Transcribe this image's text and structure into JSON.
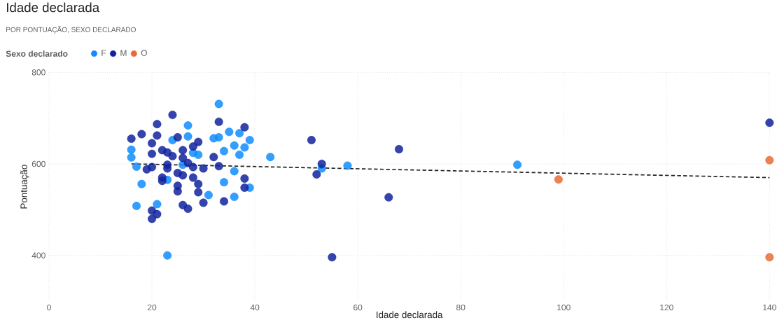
{
  "chart_data": {
    "type": "scatter",
    "title": "Idade declarada",
    "subtitle": "POR PONTUAÇÃO, SEXO DECLARADO",
    "xlabel": "Idade declarada",
    "ylabel": "Pontuação",
    "legend_title": "Sexo declarado",
    "xlim": [
      0,
      140
    ],
    "ylim": [
      300,
      800
    ],
    "xticks": [
      0,
      20,
      40,
      60,
      80,
      100,
      120,
      140
    ],
    "yticks": [
      400,
      600,
      800
    ],
    "grid": true,
    "legend": "top left",
    "marker": "circle",
    "series": [
      {
        "name": "F",
        "color": "#118dff",
        "x": [
          16,
          16,
          17,
          17,
          18,
          21,
          23,
          23,
          24,
          27,
          27,
          28,
          31,
          33,
          33,
          32,
          34,
          34,
          35,
          36,
          36,
          36,
          37,
          37,
          38,
          39,
          39,
          43,
          53,
          58,
          91,
          29,
          26
        ],
        "values": [
          631,
          614,
          594,
          508,
          556,
          512,
          400,
          565,
          652,
          684,
          660,
          624,
          532,
          731,
          658,
          656,
          628,
          560,
          670,
          640,
          584,
          528,
          667,
          620,
          636,
          652,
          548,
          615,
          590,
          596,
          598,
          620,
          598
        ]
      },
      {
        "name": "M",
        "color": "#12239e",
        "x": [
          16,
          18,
          19,
          20,
          20,
          20,
          20,
          20,
          21,
          21,
          21,
          22,
          22,
          22,
          23,
          23,
          23,
          24,
          24,
          25,
          25,
          25,
          25,
          26,
          26,
          26,
          26,
          27,
          27,
          28,
          28,
          28,
          29,
          29,
          29,
          30,
          30,
          32,
          33,
          33,
          34,
          38,
          38,
          38,
          51,
          52,
          53,
          55,
          66,
          68,
          140
        ],
        "values": [
          655,
          665,
          588,
          645,
          622,
          593,
          498,
          480,
          687,
          662,
          490,
          630,
          570,
          563,
          625,
          598,
          590,
          707,
          617,
          658,
          580,
          552,
          540,
          630,
          613,
          575,
          510,
          602,
          502,
          638,
          593,
          570,
          648,
          556,
          538,
          590,
          515,
          615,
          692,
          595,
          518,
          680,
          568,
          548,
          652,
          577,
          600,
          396,
          527,
          632,
          690
        ]
      },
      {
        "name": "O",
        "color": "#e66c37",
        "x": [
          99,
          140,
          140
        ],
        "values": [
          566,
          608,
          396
        ]
      },
      {
        "type": "line",
        "color": "#252423",
        "line_style": "dashed",
        "marker": "none",
        "x": [
          16,
          140
        ],
        "values": [
          600,
          570
        ]
      }
    ]
  }
}
